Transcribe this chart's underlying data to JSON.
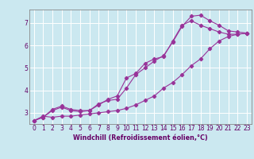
{
  "xlabel": "Windchill (Refroidissement éolien,°C)",
  "bg_color": "#cbe8f0",
  "line_color": "#993399",
  "grid_color": "#ffffff",
  "text_color": "#660066",
  "spine_color": "#888888",
  "xlim": [
    -0.5,
    23.5
  ],
  "ylim": [
    2.5,
    7.6
  ],
  "yticks": [
    3,
    4,
    5,
    6,
    7
  ],
  "xticks": [
    0,
    1,
    2,
    3,
    4,
    5,
    6,
    7,
    8,
    9,
    10,
    11,
    12,
    13,
    14,
    15,
    16,
    17,
    18,
    19,
    20,
    21,
    22,
    23
  ],
  "series1_x": [
    0,
    1,
    2,
    3,
    4,
    5,
    6,
    7,
    8,
    9,
    10,
    11,
    12,
    13,
    14,
    15,
    16,
    17,
    18,
    19,
    20,
    21,
    22,
    23
  ],
  "series1_y": [
    2.65,
    2.85,
    2.8,
    2.85,
    2.85,
    2.9,
    2.95,
    3.0,
    3.05,
    3.1,
    3.2,
    3.35,
    3.55,
    3.75,
    4.1,
    4.35,
    4.7,
    5.1,
    5.4,
    5.85,
    6.2,
    6.4,
    6.5,
    6.55
  ],
  "series2_x": [
    0,
    1,
    2,
    3,
    4,
    5,
    6,
    7,
    8,
    9,
    10,
    11,
    12,
    13,
    14,
    15,
    16,
    17,
    18,
    19,
    20,
    21,
    22,
    23
  ],
  "series2_y": [
    2.65,
    2.8,
    3.15,
    3.3,
    3.15,
    3.1,
    3.1,
    3.4,
    3.55,
    3.6,
    4.1,
    4.7,
    5.0,
    5.3,
    5.55,
    6.15,
    6.85,
    7.3,
    7.35,
    7.1,
    6.9,
    6.65,
    6.6,
    6.55
  ],
  "series3_x": [
    0,
    1,
    2,
    3,
    4,
    5,
    6,
    7,
    8,
    9,
    10,
    11,
    12,
    13,
    14,
    15,
    16,
    17,
    18,
    19,
    20,
    21,
    22,
    23
  ],
  "series3_y": [
    2.65,
    2.8,
    3.1,
    3.25,
    3.1,
    3.05,
    3.1,
    3.35,
    3.6,
    3.75,
    4.55,
    4.75,
    5.2,
    5.4,
    5.5,
    6.2,
    6.9,
    7.1,
    6.9,
    6.75,
    6.6,
    6.5,
    6.5,
    6.55
  ],
  "xlabel_fontsize": 5.8,
  "tick_fontsize": 5.5,
  "lw": 0.8,
  "ms": 2.2
}
